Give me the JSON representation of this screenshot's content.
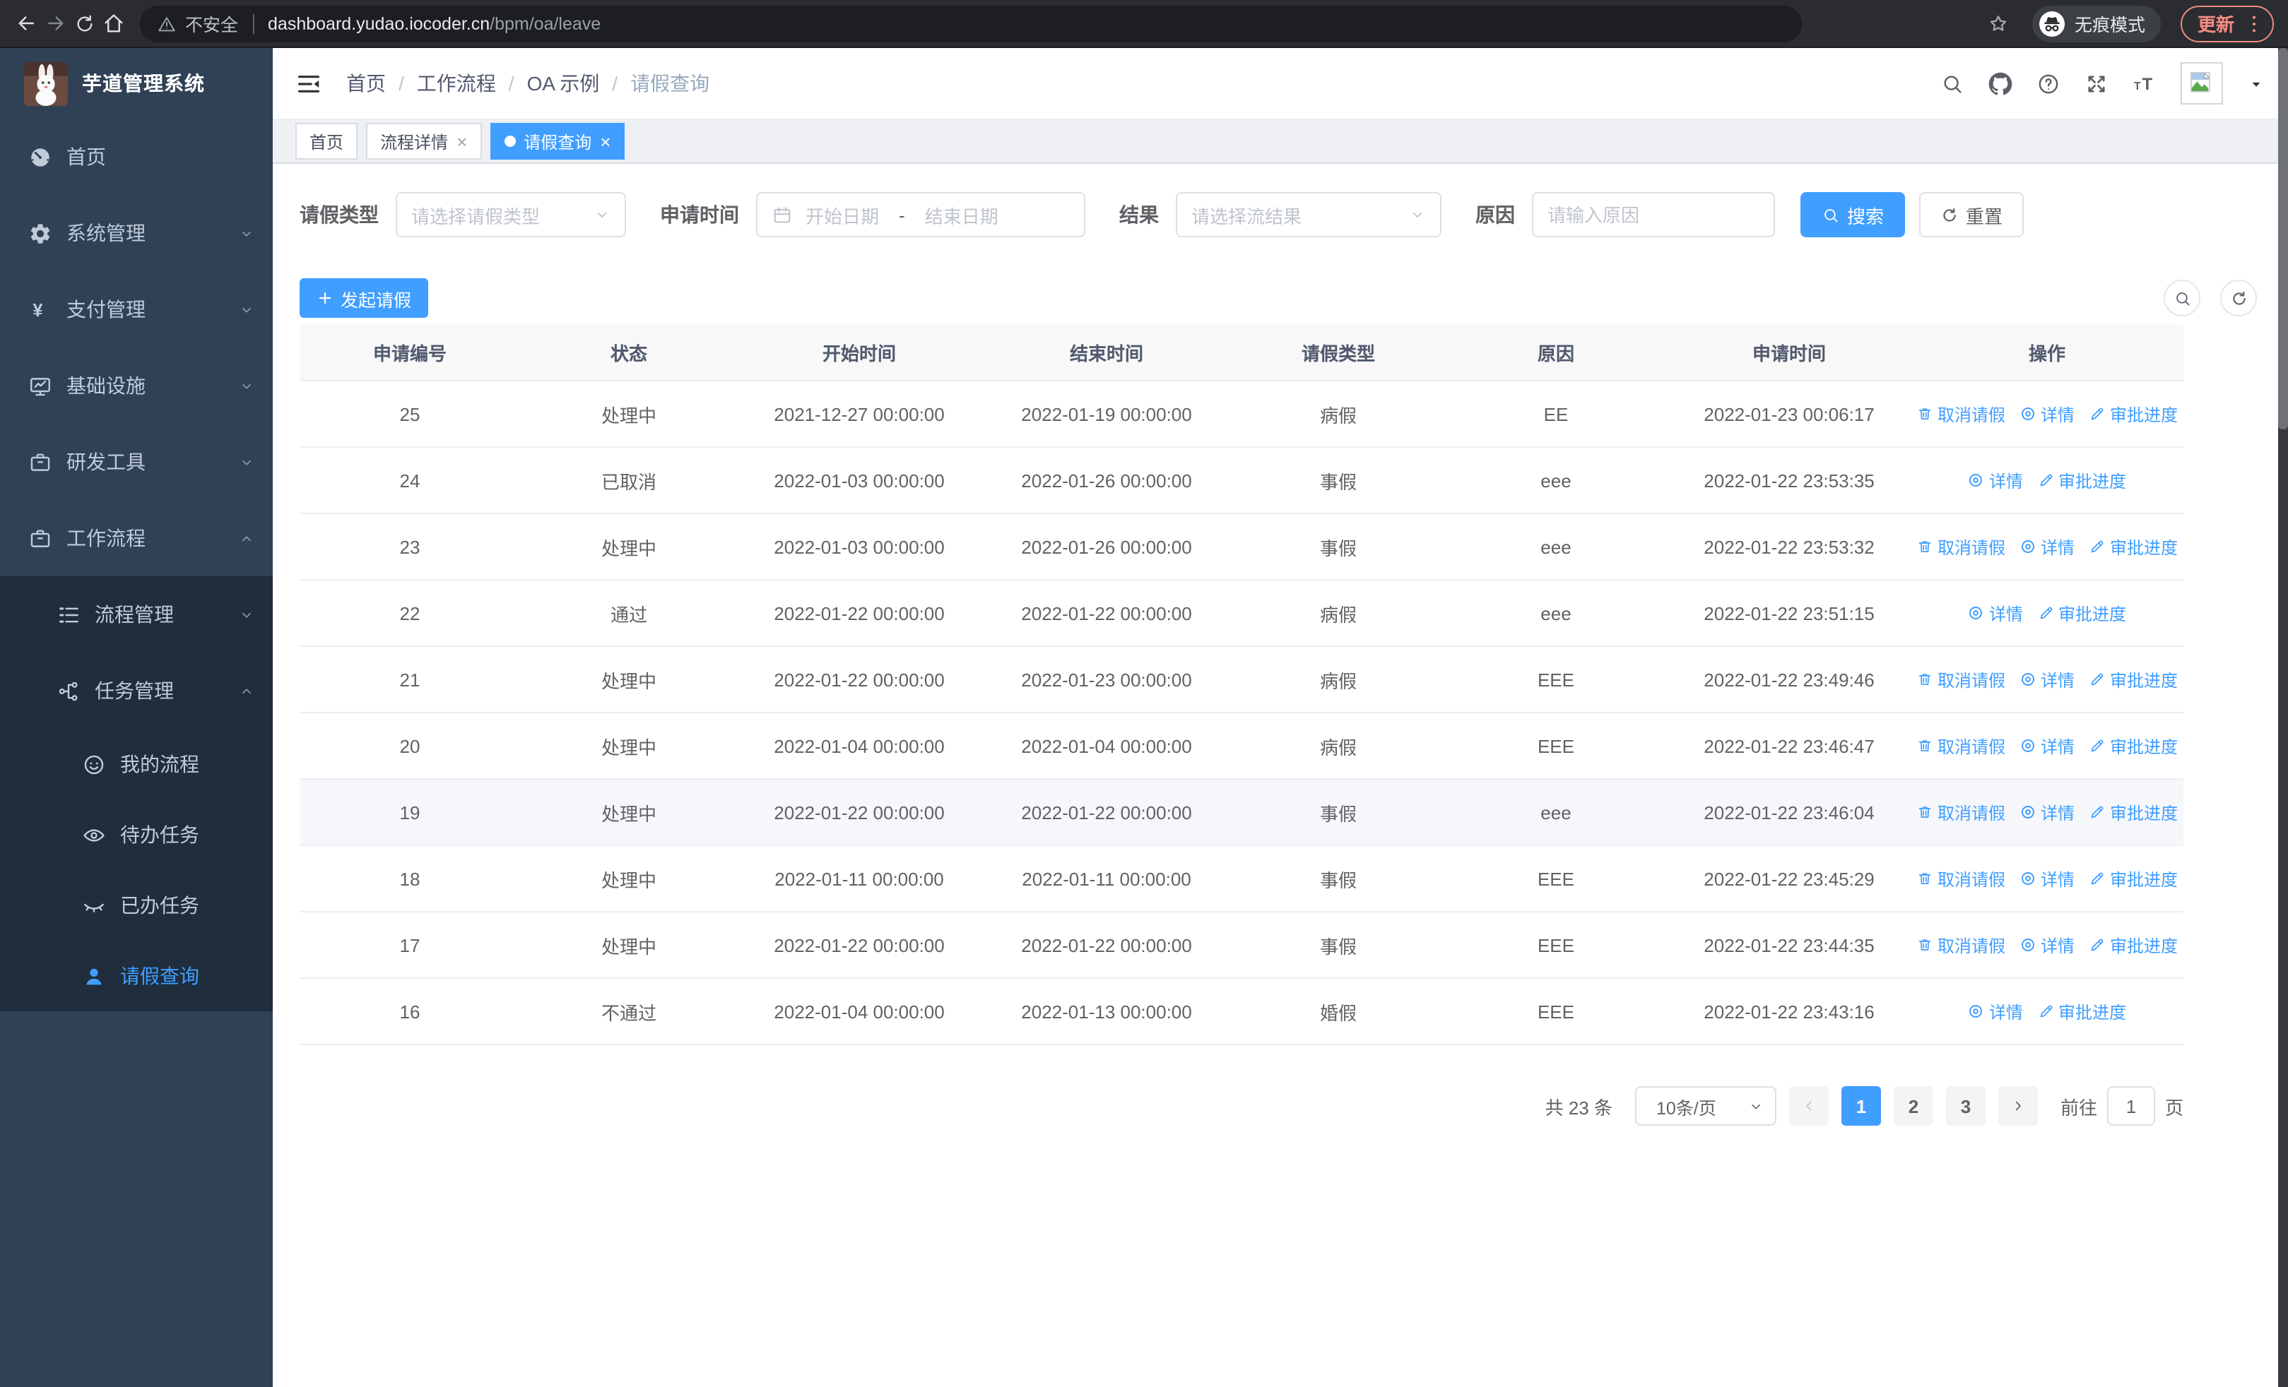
{
  "colors": {
    "accent": "#409eff",
    "sidebar_bg": "#304156",
    "submenu_bg": "#1f2d3d",
    "update": "#f28b82"
  },
  "browser": {
    "security_label": "不安全",
    "url_host": "dashboard.yudao.iocoder.cn",
    "url_path": "/bpm/oa/leave",
    "incognito_label": "无痕模式",
    "update_label": "更新"
  },
  "sidebar": {
    "title": "芋道管理系统",
    "items": [
      {
        "icon": "dashboard-icon",
        "label": "首页",
        "level": 1
      },
      {
        "icon": "gear-icon",
        "label": "系统管理",
        "level": 1,
        "chevron": "down"
      },
      {
        "icon": "yen-icon",
        "label": "支付管理",
        "level": 1,
        "chevron": "down"
      },
      {
        "icon": "infra-icon",
        "label": "基础设施",
        "level": 1,
        "chevron": "down"
      },
      {
        "icon": "briefcase-icon",
        "label": "研发工具",
        "level": 1,
        "chevron": "down"
      },
      {
        "icon": "workflow-icon",
        "label": "工作流程",
        "level": 1,
        "chevron": "up"
      },
      {
        "icon": "list-icon",
        "label": "流程管理",
        "level": 2,
        "chevron": "down"
      },
      {
        "icon": "flow-icon",
        "label": "任务管理",
        "level": 2,
        "chevron": "up"
      },
      {
        "icon": "face-icon",
        "label": "我的流程",
        "level": 3
      },
      {
        "icon": "eye-icon",
        "label": "待办任务",
        "level": 3
      },
      {
        "icon": "eye-closed-icon",
        "label": "已办任务",
        "level": 3
      },
      {
        "icon": "user-icon",
        "label": "请假查询",
        "level": 3,
        "active": true
      }
    ]
  },
  "header": {
    "breadcrumb": [
      "首页",
      "工作流程",
      "OA 示例",
      "请假查询"
    ],
    "icons": [
      "search-icon",
      "github-icon",
      "help-icon",
      "fullscreen-icon",
      "fontsize-icon"
    ]
  },
  "tabs": [
    {
      "label": "首页"
    },
    {
      "label": "流程详情",
      "closable": true
    },
    {
      "label": "请假查询",
      "closable": true,
      "active": true
    }
  ],
  "filters": {
    "type_label": "请假类型",
    "type_placeholder": "请选择请假类型",
    "time_label": "申请时间",
    "start_placeholder": "开始日期",
    "range_separator": "-",
    "end_placeholder": "结束日期",
    "result_label": "结果",
    "result_placeholder": "请选择流结果",
    "reason_label": "原因",
    "reason_placeholder": "请输入原因",
    "search_label": "搜索",
    "reset_label": "重置"
  },
  "toolbar": {
    "create_label": "发起请假"
  },
  "table": {
    "columns": [
      "申请编号",
      "状态",
      "开始时间",
      "结束时间",
      "请假类型",
      "原因",
      "申请时间",
      "操作"
    ],
    "rows": [
      {
        "id": "25",
        "status": "处理中",
        "start": "2021-12-27 00:00:00",
        "end": "2022-01-19 00:00:00",
        "type": "病假",
        "reason": "EE",
        "apply_time": "2022-01-23 00:06:17",
        "actions": [
          {
            "icon": "delete-icon",
            "label": "取消请假"
          },
          {
            "icon": "view-icon",
            "label": "详情"
          },
          {
            "icon": "edit-icon",
            "label": "审批进度"
          }
        ]
      },
      {
        "id": "24",
        "status": "已取消",
        "start": "2022-01-03 00:00:00",
        "end": "2022-01-26 00:00:00",
        "type": "事假",
        "reason": "eee",
        "apply_time": "2022-01-22 23:53:35",
        "actions": [
          {
            "icon": "view-icon",
            "label": "详情"
          },
          {
            "icon": "edit-icon",
            "label": "审批进度"
          }
        ]
      },
      {
        "id": "23",
        "status": "处理中",
        "start": "2022-01-03 00:00:00",
        "end": "2022-01-26 00:00:00",
        "type": "事假",
        "reason": "eee",
        "apply_time": "2022-01-22 23:53:32",
        "actions": [
          {
            "icon": "delete-icon",
            "label": "取消请假"
          },
          {
            "icon": "view-icon",
            "label": "详情"
          },
          {
            "icon": "edit-icon",
            "label": "审批进度"
          }
        ]
      },
      {
        "id": "22",
        "status": "通过",
        "start": "2022-01-22 00:00:00",
        "end": "2022-01-22 00:00:00",
        "type": "病假",
        "reason": "eee",
        "apply_time": "2022-01-22 23:51:15",
        "actions": [
          {
            "icon": "view-icon",
            "label": "详情"
          },
          {
            "icon": "edit-icon",
            "label": "审批进度"
          }
        ]
      },
      {
        "id": "21",
        "status": "处理中",
        "start": "2022-01-22 00:00:00",
        "end": "2022-01-23 00:00:00",
        "type": "病假",
        "reason": "EEE",
        "apply_time": "2022-01-22 23:49:46",
        "actions": [
          {
            "icon": "delete-icon",
            "label": "取消请假"
          },
          {
            "icon": "view-icon",
            "label": "详情"
          },
          {
            "icon": "edit-icon",
            "label": "审批进度"
          }
        ]
      },
      {
        "id": "20",
        "status": "处理中",
        "start": "2022-01-04 00:00:00",
        "end": "2022-01-04 00:00:00",
        "type": "病假",
        "reason": "EEE",
        "apply_time": "2022-01-22 23:46:47",
        "actions": [
          {
            "icon": "delete-icon",
            "label": "取消请假"
          },
          {
            "icon": "view-icon",
            "label": "详情"
          },
          {
            "icon": "edit-icon",
            "label": "审批进度"
          }
        ]
      },
      {
        "id": "19",
        "status": "处理中",
        "start": "2022-01-22 00:00:00",
        "end": "2022-01-22 00:00:00",
        "type": "事假",
        "reason": "eee",
        "apply_time": "2022-01-22 23:46:04",
        "highlight": true,
        "actions": [
          {
            "icon": "delete-icon",
            "label": "取消请假"
          },
          {
            "icon": "view-icon",
            "label": "详情"
          },
          {
            "icon": "edit-icon",
            "label": "审批进度"
          }
        ]
      },
      {
        "id": "18",
        "status": "处理中",
        "start": "2022-01-11 00:00:00",
        "end": "2022-01-11 00:00:00",
        "type": "事假",
        "reason": "EEE",
        "apply_time": "2022-01-22 23:45:29",
        "actions": [
          {
            "icon": "delete-icon",
            "label": "取消请假"
          },
          {
            "icon": "view-icon",
            "label": "详情"
          },
          {
            "icon": "edit-icon",
            "label": "审批进度"
          }
        ]
      },
      {
        "id": "17",
        "status": "处理中",
        "start": "2022-01-22 00:00:00",
        "end": "2022-01-22 00:00:00",
        "type": "事假",
        "reason": "EEE",
        "apply_time": "2022-01-22 23:44:35",
        "actions": [
          {
            "icon": "delete-icon",
            "label": "取消请假"
          },
          {
            "icon": "view-icon",
            "label": "详情"
          },
          {
            "icon": "edit-icon",
            "label": "审批进度"
          }
        ]
      },
      {
        "id": "16",
        "status": "不通过",
        "start": "2022-01-04 00:00:00",
        "end": "2022-01-13 00:00:00",
        "type": "婚假",
        "reason": "EEE",
        "apply_time": "2022-01-22 23:43:16",
        "actions": [
          {
            "icon": "view-icon",
            "label": "详情"
          },
          {
            "icon": "edit-icon",
            "label": "审批进度"
          }
        ]
      }
    ]
  },
  "pagination": {
    "total": "共 23 条",
    "page_size": "10条/页",
    "pages": [
      "1",
      "2",
      "3"
    ],
    "active_page": "1",
    "goto_label": "前往",
    "goto_value": "1",
    "page_unit": "页"
  }
}
